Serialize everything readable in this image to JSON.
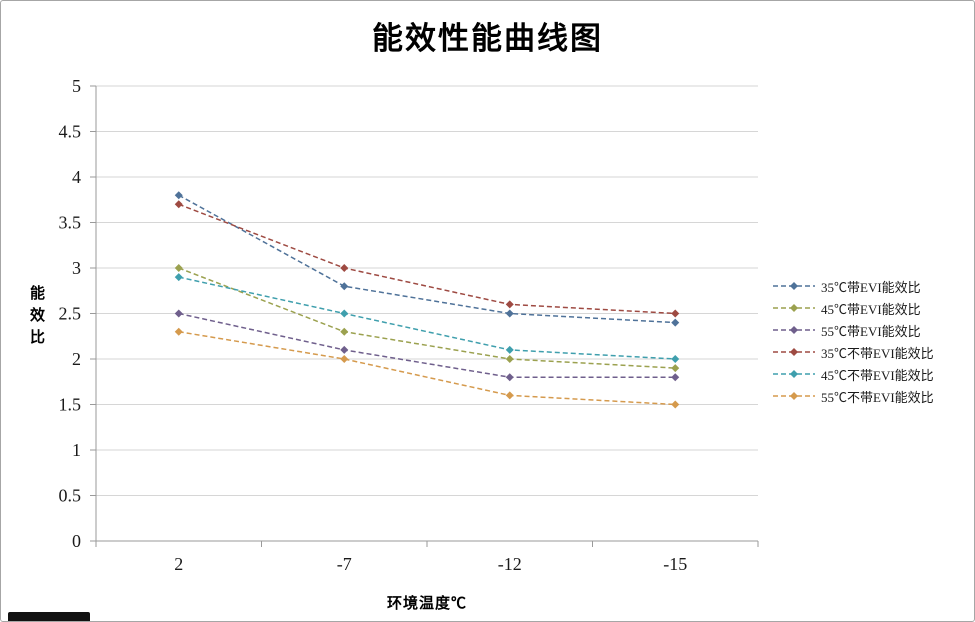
{
  "chart_data": {
    "type": "line",
    "title": "能效性能曲线图",
    "xlabel": "环境温度℃",
    "ylabel": "能效比",
    "categories": [
      "2",
      "-7",
      "-12",
      "-15"
    ],
    "y_ticks": [
      "0",
      "0.5",
      "1",
      "1.5",
      "2",
      "2.5",
      "3",
      "3.5",
      "4",
      "4.5",
      "5"
    ],
    "ylim": [
      0,
      5
    ],
    "grid": "horizontal",
    "legend_position": "right",
    "line_dash": "dashed",
    "marker": "diamond",
    "axis_color": "#9a9a9a",
    "gridline_color": "#d6d6d6",
    "series": [
      {
        "name": "35℃带EVI能效比",
        "color": "#4f7299",
        "values": [
          3.8,
          2.8,
          2.5,
          2.4
        ]
      },
      {
        "name": "45℃带EVI能效比",
        "color": "#9ba14f",
        "values": [
          3.0,
          2.3,
          2.0,
          1.9
        ]
      },
      {
        "name": "55℃带EVI能效比",
        "color": "#6f5f8c",
        "values": [
          2.5,
          2.1,
          1.8,
          1.8
        ]
      },
      {
        "name": "35℃不带EVI能效比",
        "color": "#9e4a42",
        "values": [
          3.7,
          3.0,
          2.6,
          2.5
        ]
      },
      {
        "name": "45℃不带EVI能效比",
        "color": "#3f9fad",
        "values": [
          2.9,
          2.5,
          2.1,
          2.0
        ]
      },
      {
        "name": "55℃不带EVI能效比",
        "color": "#d59a4d",
        "values": [
          2.3,
          2.0,
          1.6,
          1.5
        ]
      }
    ]
  }
}
